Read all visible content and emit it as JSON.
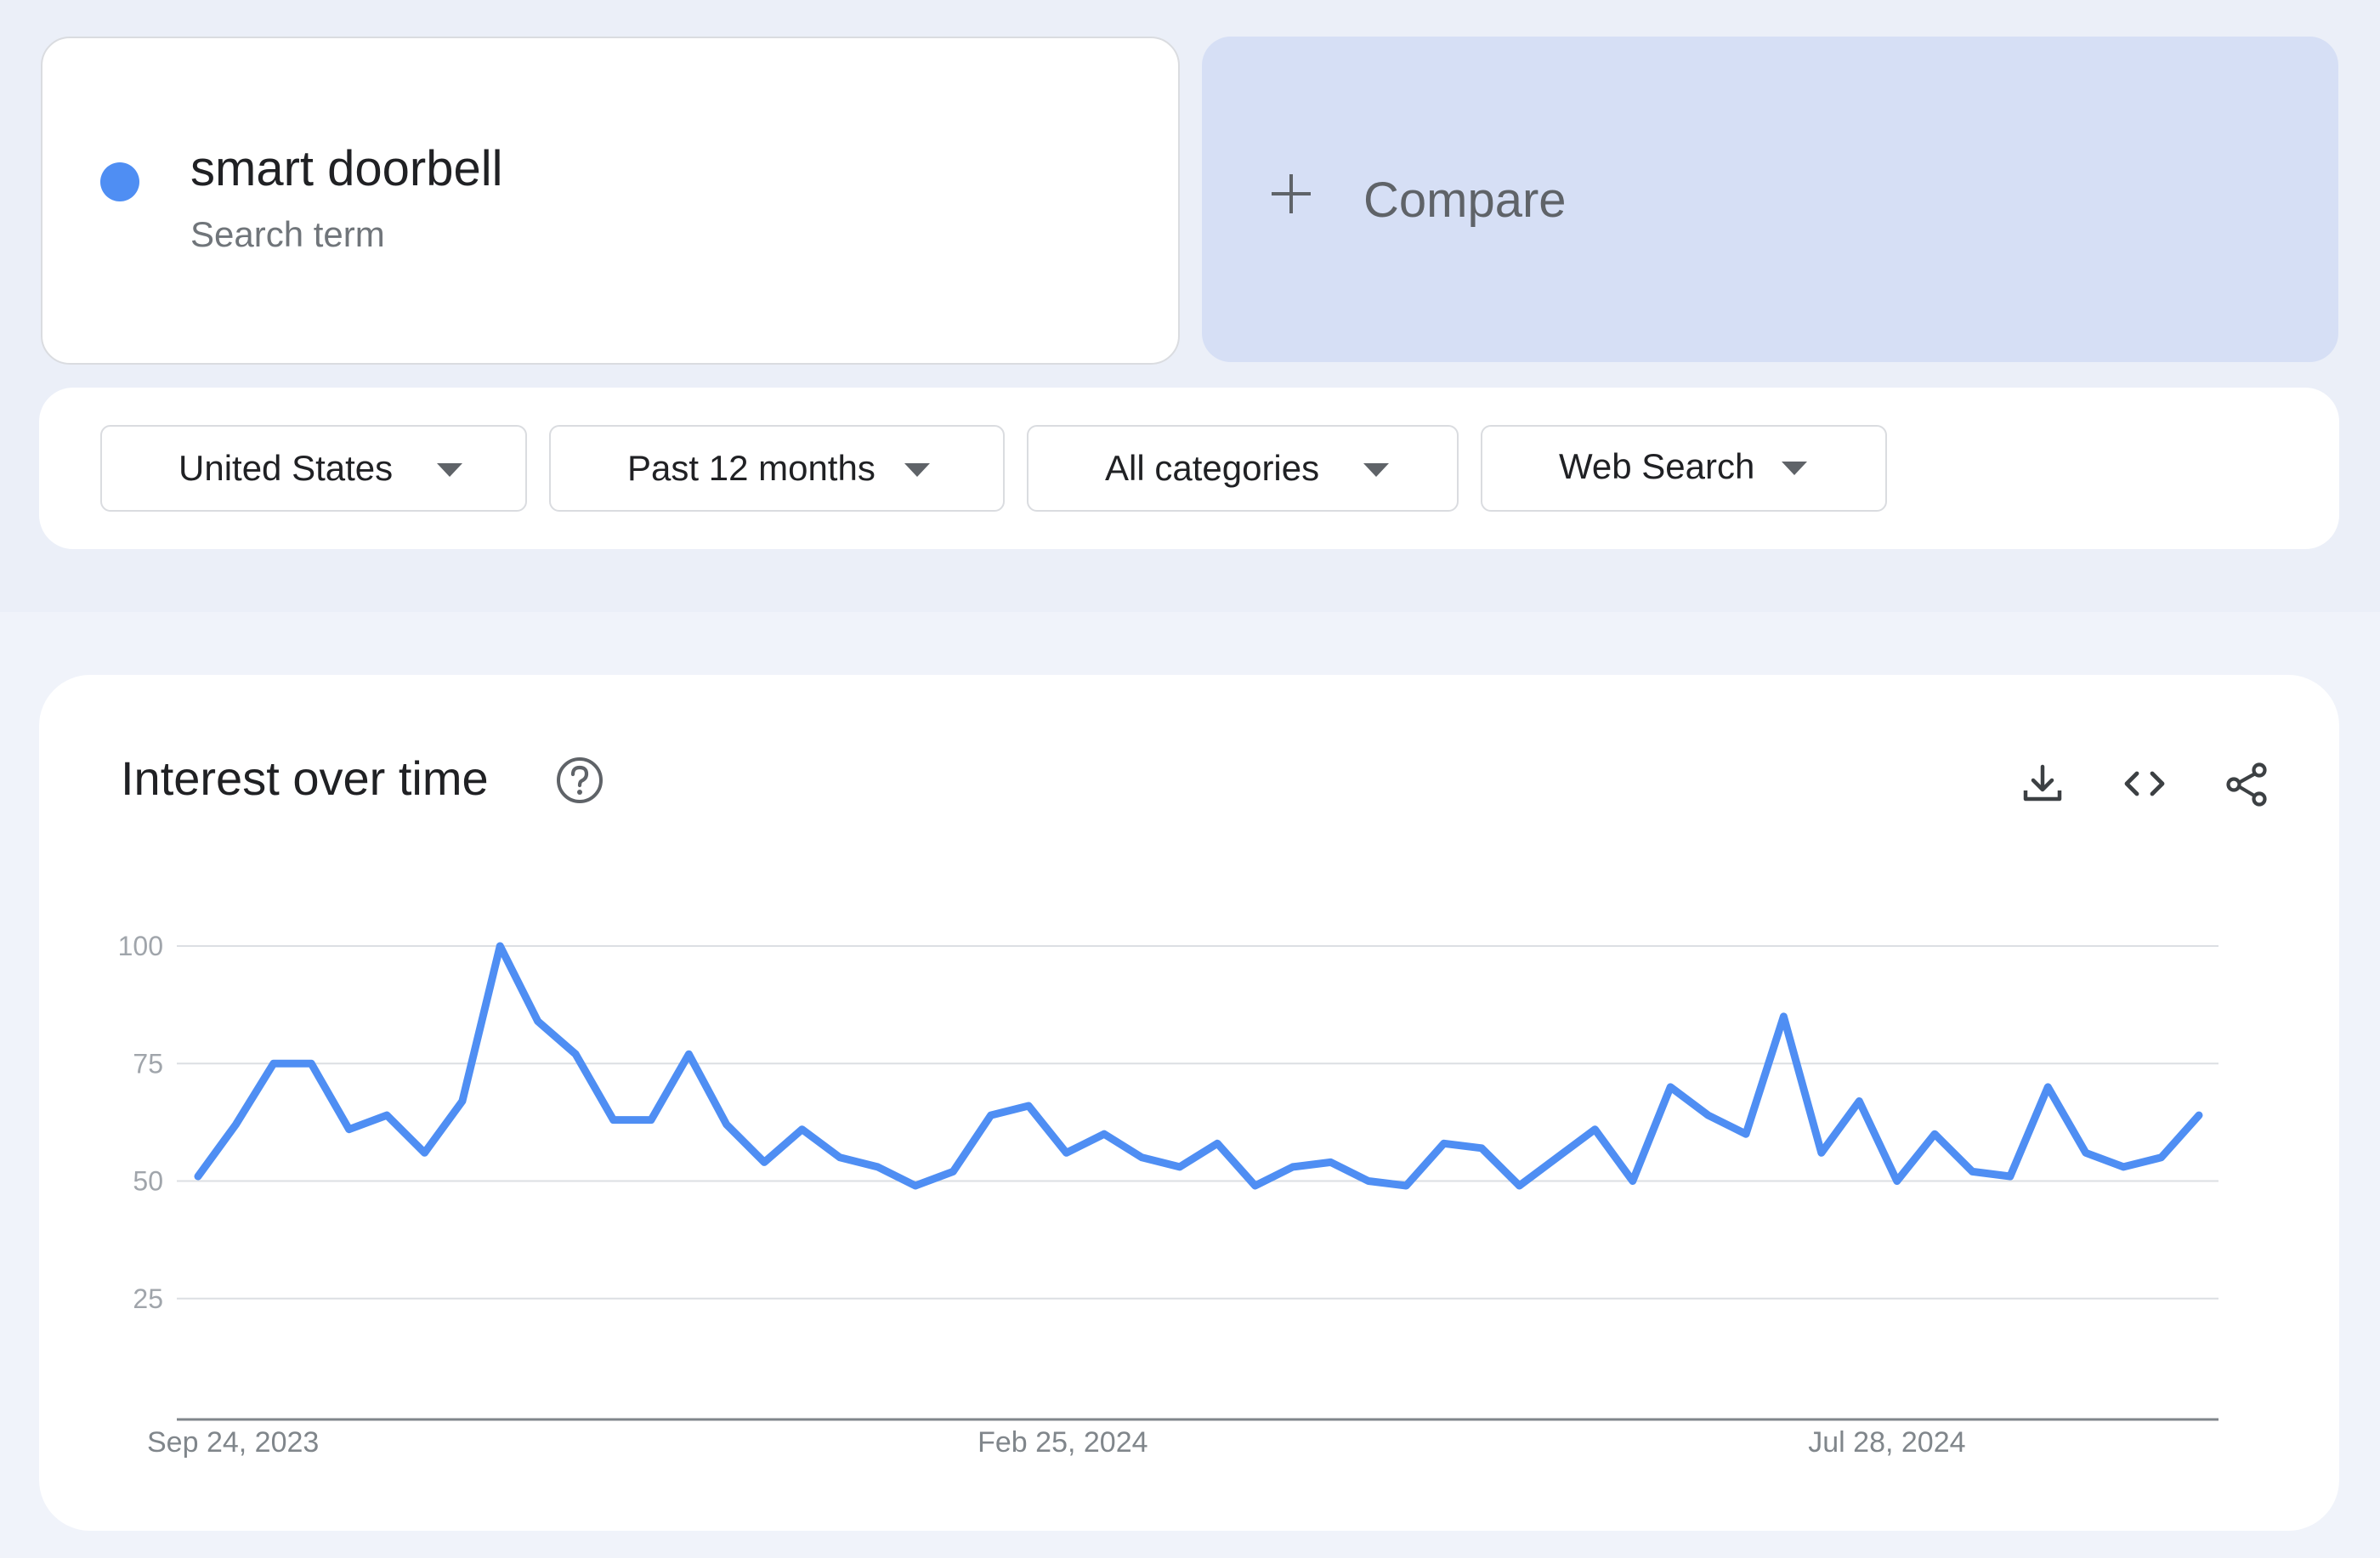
{
  "search_term": {
    "name": "smart doorbell",
    "type": "Search term",
    "color": "#4f8ef3"
  },
  "compare": {
    "label": "Compare",
    "icon": "plus-icon"
  },
  "filters": [
    {
      "label": "United States",
      "icon": "caret-down-icon"
    },
    {
      "label": "Past 12 months",
      "icon": "caret-down-icon"
    },
    {
      "label": "All categories",
      "icon": "caret-down-icon"
    },
    {
      "label": "Web Search",
      "icon": "caret-down-icon"
    }
  ],
  "interest_panel": {
    "title": "Interest over time",
    "help_icon": "help-circle-icon",
    "tools": [
      "download-icon",
      "embed-code-icon",
      "share-icon"
    ]
  },
  "chart_data": {
    "type": "line",
    "title": "",
    "xlabel": "",
    "ylabel": "",
    "ylim": [
      0,
      100
    ],
    "y_ticks": [
      "100",
      "75",
      "50",
      "25"
    ],
    "x_tick_labels": [
      {
        "label": "Sep 24, 2023",
        "index": 0
      },
      {
        "label": "Feb 25, 2024",
        "index": 22
      },
      {
        "label": "Jul 28, 2024",
        "index": 44
      }
    ],
    "grid": true,
    "legend": "none",
    "series": [
      {
        "name": "smart doorbell",
        "color": "#4f8ef3",
        "values": [
          51,
          62,
          75,
          75,
          61,
          64,
          56,
          67,
          100,
          84,
          77,
          63,
          63,
          77,
          62,
          54,
          61,
          55,
          53,
          49,
          52,
          64,
          66,
          56,
          60,
          55,
          53,
          58,
          49,
          53,
          54,
          50,
          49,
          58,
          57,
          49,
          55,
          61,
          50,
          70,
          64,
          60,
          85,
          56,
          67,
          50,
          60,
          52,
          51,
          70,
          56,
          53,
          55,
          64
        ]
      }
    ]
  }
}
